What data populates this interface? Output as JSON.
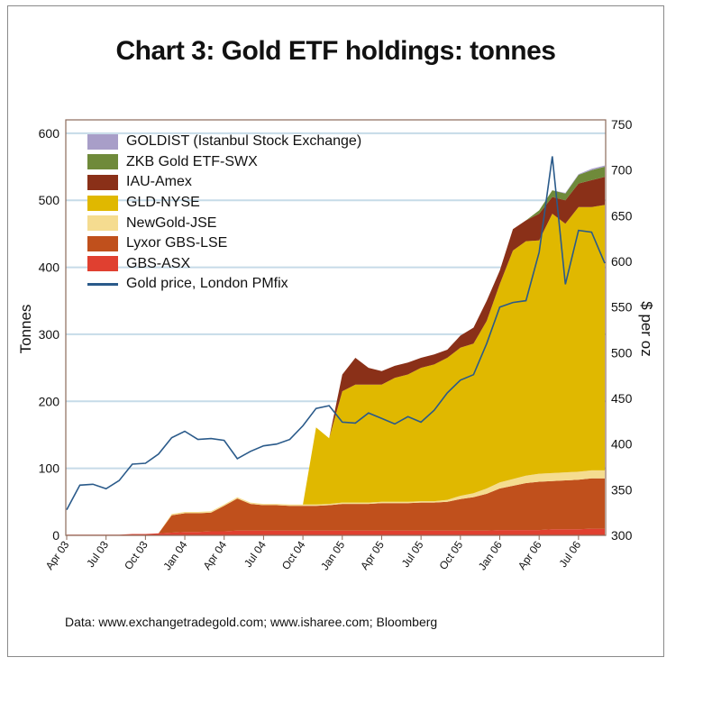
{
  "chart_data": {
    "type": "area",
    "title": "Chart 3: Gold ETF holdings: tonnes",
    "ylabel": "Tonnes",
    "y2label": "$ per oz",
    "ylim": [
      0,
      620
    ],
    "y2lim": [
      300,
      755
    ],
    "yticks": [
      "0",
      "100",
      "200",
      "300",
      "400",
      "500",
      "600"
    ],
    "y2ticks": [
      "300",
      "350",
      "400",
      "450",
      "500",
      "550",
      "600",
      "650",
      "700",
      "750"
    ],
    "grid": true,
    "legend_position": "top-left",
    "source": "Data: www.exchangetradegold.com; www.isharee.com; Bloomberg",
    "x_months": [
      "Apr 03",
      "May 03",
      "Jun 03",
      "Jul 03",
      "Aug 03",
      "Sep 03",
      "Oct 03",
      "Nov 03",
      "Dec 03",
      "Jan 04",
      "Feb 04",
      "Mar 04",
      "Apr 04",
      "May 04",
      "Jun 04",
      "Jul 04",
      "Aug 04",
      "Sep 04",
      "Oct 04",
      "Nov 04",
      "Dec 04",
      "Jan 05",
      "Feb 05",
      "Mar 05",
      "Apr 05",
      "May 05",
      "Jun 05",
      "Jul 05",
      "Aug 05",
      "Sep 05",
      "Oct 05",
      "Nov 05",
      "Dec 05",
      "Jan 06",
      "Feb 06",
      "Mar 06",
      "Apr 06",
      "May 06",
      "Jun 06",
      "Jul 06",
      "Aug 06",
      "Sep 06"
    ],
    "xticks": [
      "Apr 03",
      "Jul 03",
      "Oct 03",
      "Jan 04",
      "Apr 04",
      "Jul 04",
      "Oct 04",
      "Jan 05",
      "Apr 05",
      "Jul 05",
      "Oct 05",
      "Jan 06",
      "Apr 06",
      "Jul 06"
    ],
    "stack_series": [
      {
        "name": "GBS-ASX",
        "color": "#e04030",
        "values": [
          1,
          1,
          1,
          1,
          1,
          2,
          2,
          3,
          4,
          5,
          5,
          6,
          6,
          7,
          7,
          7,
          7,
          7,
          7,
          7,
          7,
          7,
          7,
          7,
          7,
          7,
          7,
          7,
          7,
          7,
          7,
          7,
          7,
          8,
          8,
          8,
          8,
          9,
          9,
          9,
          10,
          10
        ]
      },
      {
        "name": "Lyxor GBS-LSE",
        "color": "#c0501c",
        "values": [
          0,
          0,
          0,
          0,
          0,
          0,
          0,
          0,
          26,
          28,
          28,
          28,
          38,
          48,
          40,
          38,
          38,
          37,
          37,
          37,
          38,
          40,
          40,
          40,
          41,
          41,
          41,
          42,
          42,
          43,
          47,
          50,
          55,
          62,
          66,
          70,
          72,
          72,
          73,
          74,
          75,
          75
        ]
      },
      {
        "name": "NewGold-JSE",
        "color": "#f5dc90",
        "values": [
          0,
          0,
          0,
          0,
          0,
          0,
          0,
          0,
          2,
          2,
          2,
          2,
          2,
          2,
          2,
          2,
          2,
          2,
          2,
          2,
          2,
          2,
          2,
          2,
          2,
          2,
          2,
          2,
          2,
          3,
          5,
          6,
          8,
          9,
          10,
          11,
          12,
          12,
          12,
          12,
          12,
          12
        ]
      },
      {
        "name": "GLD-NYSE",
        "color": "#e0b800",
        "values": [
          0,
          0,
          0,
          0,
          0,
          0,
          0,
          0,
          0,
          0,
          0,
          0,
          0,
          0,
          0,
          0,
          0,
          0,
          0,
          115,
          98,
          166,
          176,
          176,
          175,
          185,
          190,
          199,
          204,
          212,
          221,
          223,
          250,
          296,
          341,
          350,
          348,
          387,
          371,
          395,
          393,
          396
        ]
      },
      {
        "name": "IAU-Amex",
        "color": "#8a3018",
        "values": [
          0,
          0,
          0,
          0,
          0,
          0,
          0,
          0,
          0,
          0,
          0,
          0,
          0,
          0,
          0,
          0,
          0,
          0,
          0,
          0,
          0,
          25,
          40,
          25,
          20,
          18,
          18,
          15,
          15,
          12,
          18,
          24,
          30,
          20,
          32,
          31,
          40,
          25,
          35,
          35,
          40,
          42
        ]
      },
      {
        "name": "ZKB Gold ETF-SWX",
        "color": "#6f8a3a",
        "values": [
          0,
          0,
          0,
          0,
          0,
          0,
          0,
          0,
          0,
          0,
          0,
          0,
          0,
          0,
          0,
          0,
          0,
          0,
          0,
          0,
          0,
          0,
          0,
          0,
          0,
          0,
          0,
          0,
          0,
          0,
          0,
          0,
          0,
          0,
          0,
          0,
          5,
          10,
          10,
          13,
          15,
          15
        ]
      },
      {
        "name": "GOLDIST (Istanbul Stock Exchange)",
        "color": "#a89ec8",
        "values": [
          0,
          0,
          0,
          0,
          0,
          0,
          0,
          0,
          0,
          0,
          0,
          0,
          0,
          0,
          0,
          0,
          0,
          0,
          0,
          0,
          0,
          0,
          0,
          0,
          0,
          0,
          0,
          0,
          0,
          0,
          0,
          0,
          0,
          0,
          0,
          0,
          0,
          0,
          1,
          1,
          2,
          2
        ]
      }
    ],
    "line_series": {
      "name": "Gold price, London PMfix",
      "color": "#2a5a8a",
      "axis": "right",
      "values": [
        328,
        355,
        356,
        351,
        360,
        378,
        379,
        389,
        407,
        414,
        405,
        406,
        404,
        384,
        392,
        398,
        400,
        405,
        420,
        439,
        442,
        424,
        423,
        434,
        428,
        422,
        430,
        424,
        437,
        456,
        470,
        476,
        510,
        550,
        555,
        557,
        610,
        715,
        575,
        634,
        632,
        598
      ]
    },
    "legend": [
      "GOLDIST (Istanbul Stock Exchange)",
      "ZKB Gold ETF-SWX",
      "IAU-Amex",
      "GLD-NYSE",
      "NewGold-JSE",
      "Lyxor GBS-LSE",
      "GBS-ASX",
      "Gold price, London PMfix"
    ]
  }
}
